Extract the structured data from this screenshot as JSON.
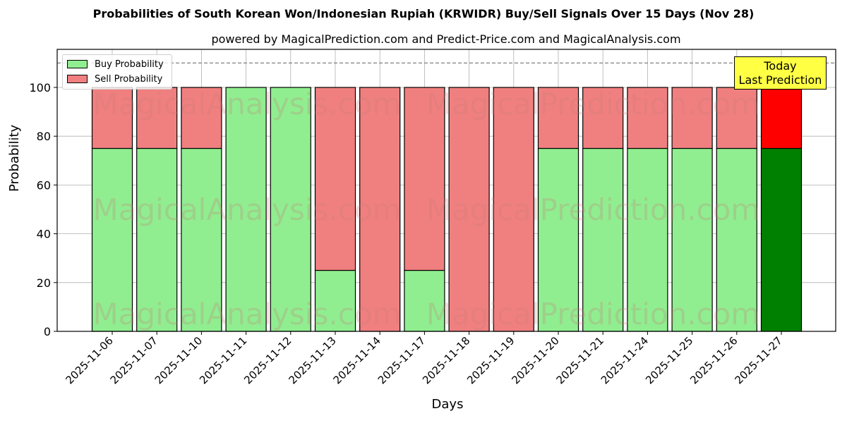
{
  "chart_data": {
    "type": "bar",
    "stacked": true,
    "title": "Probabilities of South Korean Won/Indonesian Rupiah (KRWIDR) Buy/Sell Signals Over 15 Days (Nov 28)",
    "subtitle": "powered by MagicalPrediction.com and Predict-Price.com and MagicalAnalysis.com",
    "xlabel": "Days",
    "ylabel": "Probability",
    "ylim": [
      0,
      115
    ],
    "yticks": [
      0,
      20,
      40,
      60,
      80,
      100
    ],
    "grid": true,
    "threshold_line": 110,
    "legend_position": "upper left",
    "categories": [
      "2025-11-06",
      "2025-11-07",
      "2025-11-10",
      "2025-11-11",
      "2025-11-12",
      "2025-11-13",
      "2025-11-14",
      "2025-11-17",
      "2025-11-18",
      "2025-11-19",
      "2025-11-20",
      "2025-11-21",
      "2025-11-24",
      "2025-11-25",
      "2025-11-26",
      "2025-11-27"
    ],
    "series": [
      {
        "name": "Buy Probability",
        "color": "#90ee90",
        "values": [
          75,
          75,
          75,
          100,
          100,
          25,
          0,
          25,
          0,
          0,
          75,
          75,
          75,
          75,
          75,
          75
        ]
      },
      {
        "name": "Sell Probability",
        "color": "#f08080",
        "values": [
          25,
          25,
          25,
          0,
          0,
          75,
          100,
          75,
          100,
          100,
          25,
          25,
          25,
          25,
          25,
          25
        ]
      }
    ],
    "highlight": {
      "index": 15,
      "buy_color": "#008000",
      "sell_color": "#ff0000"
    },
    "annotation": {
      "line1": "Today",
      "line2": "Last Prediction",
      "background": "#ffff44"
    },
    "watermarks": [
      "MagicalAnalysis.com",
      "MagicalPrediction.com"
    ]
  }
}
